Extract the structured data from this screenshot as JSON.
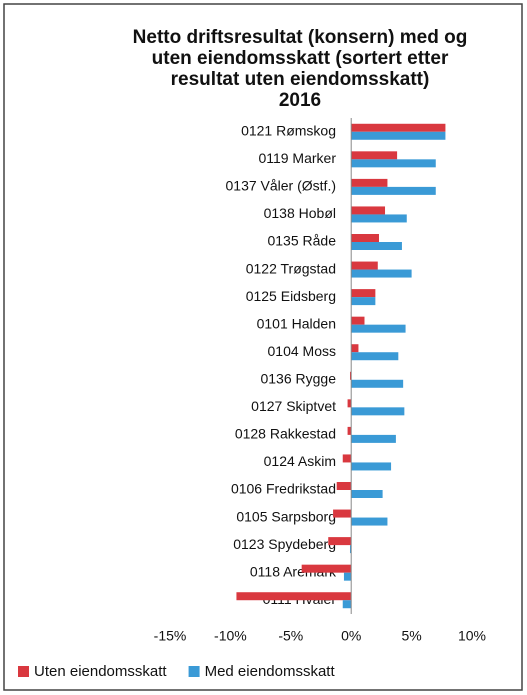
{
  "chart_data": {
    "type": "bar",
    "orientation": "horizontal",
    "title": [
      "Netto driftsresultat (konsern) med og",
      "uten eiendomsskatt (sortert etter",
      "resultat uten eiendomsskatt)",
      "2016"
    ],
    "categories": [
      "0121 Rømskog",
      "0119 Marker",
      "0137 Våler (Østf.)",
      "0138 Hobøl",
      "0135 Råde",
      "0122 Trøgstad",
      "0125 Eidsberg",
      "0101 Halden",
      "0104 Moss",
      "0136 Rygge",
      "0127 Skiptvet",
      "0128 Rakkestad",
      "0124 Askim",
      "0106 Fredrikstad",
      "0105 Sarpsborg",
      "0123 Spydeberg",
      "0118 Aremark",
      "0111 Hvaler"
    ],
    "series": [
      {
        "name": "Uten eiendomsskatt",
        "color": "#d9383f",
        "values": [
          7.8,
          3.8,
          3.0,
          2.8,
          2.3,
          2.2,
          2.0,
          1.1,
          0.6,
          -0.1,
          -0.3,
          -0.3,
          -0.7,
          -1.2,
          -1.5,
          -1.9,
          -4.1,
          -9.5
        ]
      },
      {
        "name": "Med eiendomsskatt",
        "color": "#3a9ad6",
        "values": [
          7.8,
          7.0,
          7.0,
          4.6,
          4.2,
          5.0,
          2.0,
          4.5,
          3.9,
          4.3,
          4.4,
          3.7,
          3.3,
          2.6,
          3.0,
          -0.1,
          -0.6,
          -0.7
        ]
      }
    ],
    "xlim": [
      -15,
      10
    ],
    "xticks": [
      {
        "value": -15,
        "label": "-15%"
      },
      {
        "value": -10,
        "label": "-10%"
      },
      {
        "value": -5,
        "label": "-5%"
      },
      {
        "value": 0,
        "label": "0%"
      },
      {
        "value": 5,
        "label": "5%"
      },
      {
        "value": 10,
        "label": "10%"
      }
    ],
    "legend": "bottom"
  }
}
